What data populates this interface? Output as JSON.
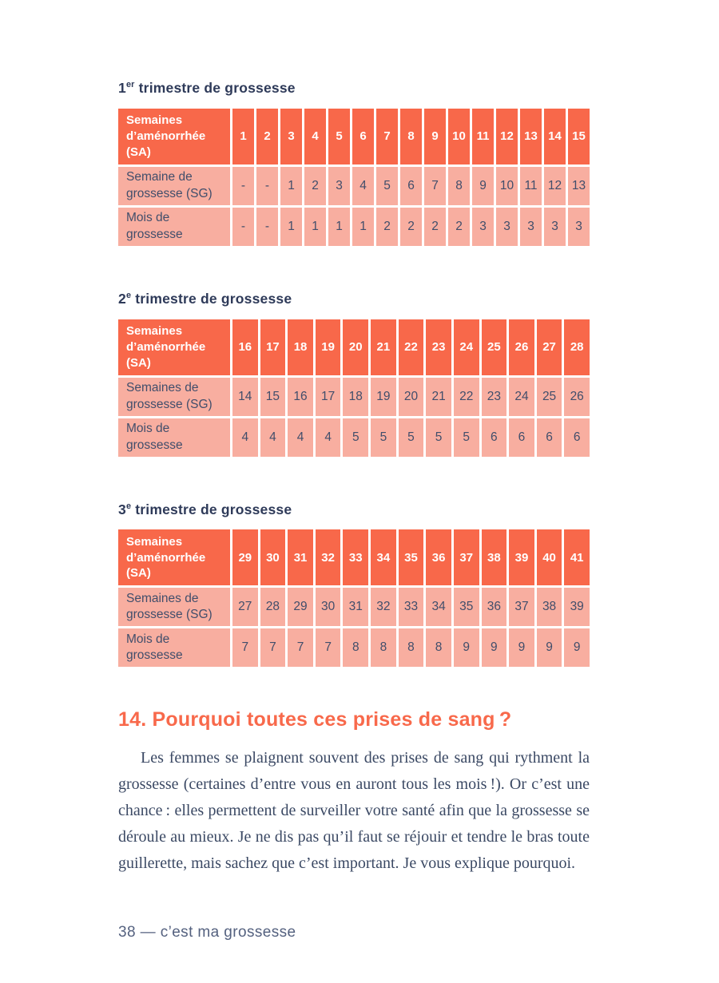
{
  "colors": {
    "header_bg": "#f8684a",
    "row_bg": "#f8aea0",
    "title_text": "#2e3a59",
    "cell_text": "#414e6b",
    "heading_text": "#f8694b",
    "paragraph_text": "#3b4964",
    "footer_text": "#54617f"
  },
  "tables": [
    {
      "title": {
        "num": "1",
        "sup": "er",
        "rest": " trimestre de grossesse"
      },
      "header": {
        "label": "Semaines d’aménorrhée (SA)",
        "values": [
          "1",
          "2",
          "3",
          "4",
          "5",
          "6",
          "7",
          "8",
          "9",
          "10",
          "11",
          "12",
          "13",
          "14",
          "15"
        ]
      },
      "rows": [
        {
          "label": "Semaine de grossesse (SG)",
          "values": [
            "-",
            "-",
            "1",
            "2",
            "3",
            "4",
            "5",
            "6",
            "7",
            "8",
            "9",
            "10",
            "11",
            "12",
            "13"
          ]
        },
        {
          "label": "Mois de grossesse",
          "values": [
            "-",
            "-",
            "1",
            "1",
            "1",
            "1",
            "2",
            "2",
            "2",
            "2",
            "3",
            "3",
            "3",
            "3",
            "3"
          ]
        }
      ]
    },
    {
      "title": {
        "num": "2",
        "sup": "e",
        "rest": " trimestre de grossesse"
      },
      "header": {
        "label": "Semaines d’aménorrhée (SA)",
        "values": [
          "16",
          "17",
          "18",
          "19",
          "20",
          "21",
          "22",
          "23",
          "24",
          "25",
          "26",
          "27",
          "28"
        ]
      },
      "rows": [
        {
          "label": "Semaines de grossesse (SG)",
          "values": [
            "14",
            "15",
            "16",
            "17",
            "18",
            "19",
            "20",
            "21",
            "22",
            "23",
            "24",
            "25",
            "26"
          ]
        },
        {
          "label": "Mois de grossesse",
          "values": [
            "4",
            "4",
            "4",
            "4",
            "5",
            "5",
            "5",
            "5",
            "5",
            "6",
            "6",
            "6",
            "6"
          ]
        }
      ]
    },
    {
      "title": {
        "num": "3",
        "sup": "e",
        "rest": " trimestre de grossesse"
      },
      "header": {
        "label": "Semaines d’aménorrhée (SA)",
        "values": [
          "29",
          "30",
          "31",
          "32",
          "33",
          "34",
          "35",
          "36",
          "37",
          "38",
          "39",
          "40",
          "41"
        ]
      },
      "rows": [
        {
          "label": "Semaines de grossesse (SG)",
          "values": [
            "27",
            "28",
            "29",
            "30",
            "31",
            "32",
            "33",
            "34",
            "35",
            "36",
            "37",
            "38",
            "39"
          ]
        },
        {
          "label": "Mois de grossesse",
          "values": [
            "7",
            "7",
            "7",
            "7",
            "8",
            "8",
            "8",
            "8",
            "9",
            "9",
            "9",
            "9",
            "9"
          ]
        }
      ]
    }
  ],
  "section": {
    "heading": "14. Pourquoi toutes ces prises de sang ?",
    "paragraph": "Les femmes se plaignent souvent des prises de sang qui rythment la grossesse (certaines d’entre vous en auront tous les mois !). Or c’est une chance : elles permettent de surveiller votre santé afin que la grossesse se déroule au mieux. Je ne dis pas qu’il faut se réjouir et tendre le bras toute guillerette, mais sachez que c’est important. Je vous explique pourquoi."
  },
  "page": {
    "footer": "38 — c’est ma grossesse"
  }
}
